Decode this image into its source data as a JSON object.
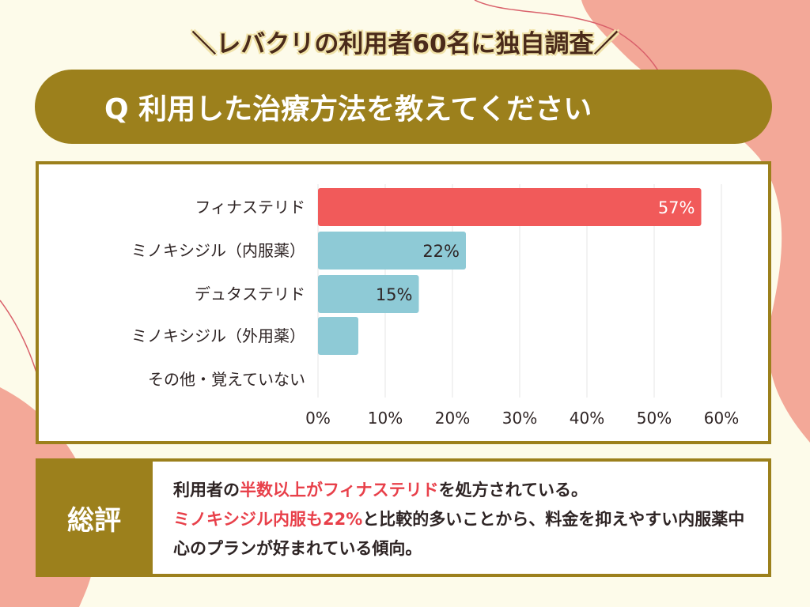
{
  "header": {
    "subtitle": "＼レバクリの利用者60名に独自調査／",
    "question": "Q 利用した治療方法を教えてください"
  },
  "colors": {
    "accent": "#9c801c",
    "highlight_bar": "#f15a5a",
    "bar": "#8ecad6",
    "background": "#fdfbea",
    "blob": "#f3a898"
  },
  "chart_data": {
    "type": "bar",
    "orientation": "horizontal",
    "categories": [
      "フィナステリド",
      "ミノキシジル（内服薬）",
      "デュタステリド",
      "ミノキシジル（外用薬）",
      "その他・覚えていない"
    ],
    "values": [
      57,
      22,
      15,
      6,
      0
    ],
    "data_labels": [
      "57%",
      "22%",
      "15%",
      "",
      ""
    ],
    "xlim": [
      0,
      60
    ],
    "ticks": [
      "0%",
      "10%",
      "20%",
      "30%",
      "40%",
      "50%",
      "60%"
    ],
    "grid": true
  },
  "summary": {
    "label": "総評",
    "parts": [
      {
        "text": "利用者の",
        "hl": false
      },
      {
        "text": "半数以上がフィナステリド",
        "hl": true
      },
      {
        "text": "を処方されている。",
        "hl": false
      },
      {
        "text": "ミノキシジル内服も22%",
        "hl": true
      },
      {
        "text": "と比較的多いことから、料金を抑えやすい内服薬中心のプランが好まれている傾向。",
        "hl": false
      }
    ]
  }
}
